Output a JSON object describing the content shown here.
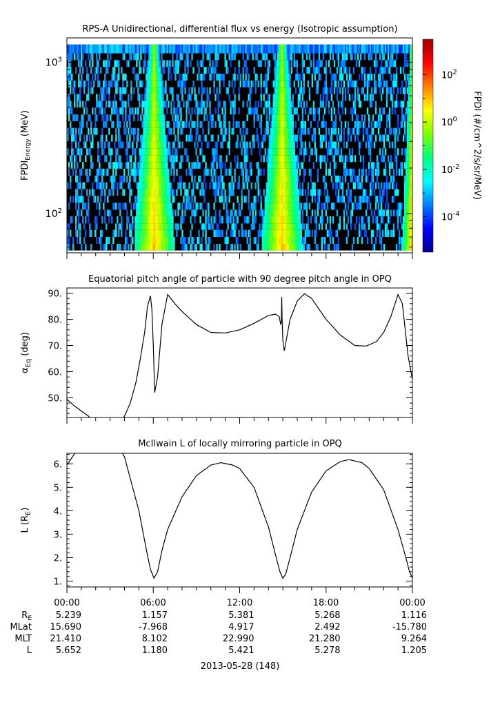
{
  "chart_data": [
    {
      "type": "heatmap",
      "title": "RPS-A Unidirectional, differential flux vs energy (Isotropic assumption)",
      "ylabel": "FPDI",
      "ylabel_sub": "Energy",
      "ylabel_unit": "(MeV)",
      "y_scale": "log",
      "ylim": [
        55,
        1450
      ],
      "y_ticks": [
        {
          "value": 100,
          "base": "10",
          "exp": "2"
        },
        {
          "value": 1000,
          "base": "10",
          "exp": "3"
        }
      ],
      "energy_edges": [
        57,
        63,
        70,
        78,
        86,
        96,
        106,
        118,
        131,
        145,
        161,
        178,
        198,
        219,
        243,
        270,
        299,
        332,
        368,
        408,
        452,
        502,
        556,
        617,
        684,
        758,
        841,
        932,
        1033,
        1146,
        1310
      ],
      "x_hours": [
        0,
        24
      ],
      "background_color": "#000000",
      "flux_bands": [
        {
          "hour_start": 4.7,
          "hour_end": 7.6,
          "peak_hour": 6.05,
          "peak_log10_flux": 1.0
        },
        {
          "hour_start": 13.5,
          "hour_end": 16.4,
          "peak_hour": 14.95,
          "peak_log10_flux": 1.0
        },
        {
          "hour_start": 22.6,
          "hour_end": 24.0,
          "peak_hour": 24.0,
          "peak_log10_flux": 1.0
        }
      ],
      "background_log10_flux": -3.2,
      "colorbar": {
        "label": "FPDI (#/cm^2/s/sr/MeV)",
        "log10_range": [
          -5.5,
          3.5
        ],
        "ticks": [
          {
            "log10": -4,
            "base": "10",
            "exp": "-4"
          },
          {
            "log10": -2,
            "base": "10",
            "exp": "-2"
          },
          {
            "log10": 0,
            "base": "10",
            "exp": "0"
          },
          {
            "log10": 2,
            "base": "10",
            "exp": "2"
          }
        ],
        "colors": [
          "#00008f",
          "#0000ff",
          "#0080ff",
          "#00ffff",
          "#00ff80",
          "#7fff00",
          "#ffff00",
          "#ff8000",
          "#ff0000",
          "#a00000"
        ]
      }
    },
    {
      "type": "line",
      "title": "Equatorial pitch angle of particle with 90 degree pitch angle in OPQ",
      "ylabel": "α",
      "ylabel_sub": "Eq",
      "ylabel_unit": "(deg)",
      "ylim": [
        42.5,
        92
      ],
      "y_ticks": [
        "50.",
        "60.",
        "70.",
        "80.",
        "90."
      ],
      "x_hours": [
        0,
        0.5,
        1.0,
        1.5,
        2.0,
        2.5,
        3.0,
        3.5,
        4.0,
        4.4,
        4.8,
        5.1,
        5.4,
        5.6,
        5.8,
        5.9,
        6.0,
        6.1,
        6.3,
        6.6,
        7.0,
        7.5,
        8.0,
        9.0,
        10.0,
        11.0,
        12.0,
        13.0,
        14.0,
        14.5,
        14.75,
        14.85,
        14.9,
        14.92,
        14.95,
        15.0,
        15.1,
        15.2,
        15.5,
        16.0,
        16.5,
        17.0,
        17.5,
        18.0,
        19.0,
        20.0,
        20.8,
        21.5,
        22.0,
        22.5,
        23.0,
        23.3,
        23.5,
        23.7,
        24.0
      ],
      "values": [
        49.5,
        47,
        45,
        43,
        40,
        38,
        38,
        40,
        43,
        48,
        56,
        65,
        75,
        85,
        89,
        84,
        70,
        52,
        58,
        78,
        89.5,
        86,
        83,
        78,
        75,
        74.8,
        76,
        78.5,
        81.5,
        82,
        81,
        78,
        79,
        88.5,
        80,
        72,
        68,
        71,
        80,
        87,
        89.8,
        88,
        84,
        80,
        74,
        70,
        69.8,
        71.5,
        75,
        81,
        89.5,
        86,
        76,
        66,
        57
      ]
    },
    {
      "type": "line",
      "title": "McIlwain L of locally mirroring particle in OPQ",
      "ylabel": "L (R",
      "ylabel_sub": "E",
      "ylabel_unit": ")",
      "ylim": [
        0.75,
        6.45
      ],
      "y_ticks": [
        "1.",
        "2.",
        "3.",
        "4.",
        "5.",
        "6."
      ],
      "x_hours": [
        0,
        0.5,
        1,
        2,
        3,
        4,
        5,
        5.5,
        5.8,
        6.05,
        6.3,
        6.6,
        7,
        8,
        9,
        10,
        10.7,
        11.5,
        12,
        13,
        14,
        14.5,
        14.8,
        15.0,
        15.2,
        15.5,
        16,
        17,
        18,
        19,
        19.6,
        20.5,
        21,
        22,
        23,
        23.5,
        23.8,
        24
      ],
      "values": [
        5.95,
        6.4,
        6.8,
        7.3,
        7.4,
        6.3,
        4.0,
        2.4,
        1.5,
        1.12,
        1.4,
        2.3,
        3.2,
        4.6,
        5.5,
        5.95,
        6.05,
        5.95,
        5.8,
        5.0,
        3.3,
        2.1,
        1.4,
        1.12,
        1.3,
        2.0,
        3.2,
        4.8,
        5.7,
        6.1,
        6.18,
        6.05,
        5.8,
        4.9,
        3.2,
        2.1,
        1.4,
        1.12
      ]
    }
  ],
  "time_axis": {
    "tick_labels": [
      "00:00",
      "06:00",
      "12:00",
      "18:00",
      "00:00"
    ],
    "date_label": "2013-05-28 (148)"
  },
  "ephemeris": {
    "rows": [
      {
        "label": "R",
        "label_sub": "E",
        "values": [
          "5.239",
          "1.157",
          "5.381",
          "5.268",
          "1.116"
        ]
      },
      {
        "label": "MLat",
        "label_sub": "",
        "values": [
          "15.690",
          "-7.968",
          "4.917",
          "2.492",
          "-15.780"
        ]
      },
      {
        "label": "MLT",
        "label_sub": "",
        "values": [
          "21.410",
          "8.102",
          "22.990",
          "21.280",
          "9.264"
        ]
      },
      {
        "label": "L",
        "label_sub": "",
        "values": [
          "5.652",
          "1.180",
          "5.421",
          "5.278",
          "1.205"
        ]
      }
    ]
  }
}
